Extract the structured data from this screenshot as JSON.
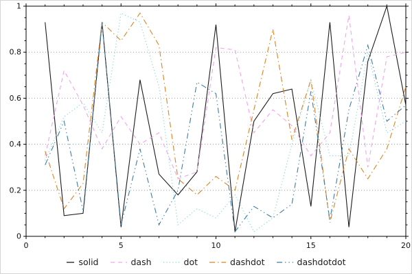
{
  "chart_data": {
    "type": "line",
    "title": "",
    "xlabel": "",
    "ylabel": "",
    "xlim": [
      0,
      20
    ],
    "ylim": [
      0,
      1
    ],
    "x_ticks": [
      0,
      5,
      10,
      15,
      20
    ],
    "x_tick_labels": [
      "0",
      "5",
      "10",
      "15",
      "20"
    ],
    "x_minor_step": 1,
    "y_ticks": [
      0,
      0.2,
      0.4,
      0.6,
      0.8,
      1
    ],
    "y_tick_labels": [
      "0",
      "0.2",
      "0.4",
      "0.6",
      "0.8",
      "1"
    ],
    "y_minor_step": 0.05,
    "grid": "horizontal-dotted",
    "grid_color": "#999999",
    "frame_color": "#000000",
    "legend_position": "bottom",
    "x": [
      1,
      2,
      3,
      4,
      5,
      6,
      7,
      8,
      9,
      10,
      11,
      12,
      13,
      14,
      15,
      16,
      17,
      18,
      19,
      20
    ],
    "series": [
      {
        "name": "solid",
        "color": "#1a1a1a",
        "dash": [],
        "values": [
          0.93,
          0.09,
          0.1,
          0.93,
          0.04,
          0.68,
          0.27,
          0.18,
          0.28,
          0.92,
          0.02,
          0.5,
          0.62,
          0.64,
          0.13,
          0.93,
          0.04,
          0.76,
          1.0,
          0.57
        ]
      },
      {
        "name": "dash",
        "color": "#f0a3ef",
        "dash": [
          6,
          5
        ],
        "values": [
          0.35,
          0.72,
          0.57,
          0.38,
          0.52,
          0.4,
          0.45,
          0.25,
          0.28,
          0.82,
          0.81,
          0.45,
          0.55,
          0.48,
          0.35,
          0.45,
          0.96,
          0.3,
          0.78,
          0.8
        ]
      },
      {
        "name": "dot",
        "color": "#7fd4e0",
        "dash": [
          1.2,
          3.2
        ],
        "values": [
          0.33,
          0.52,
          0.58,
          0.45,
          0.97,
          0.93,
          0.65,
          0.05,
          0.12,
          0.08,
          0.18,
          0.02,
          0.08,
          0.4,
          0.68,
          0.35,
          0.35,
          0.8,
          0.45,
          0.5
        ]
      },
      {
        "name": "dashdot",
        "color": "#e0821e",
        "dash": [
          8,
          4,
          1.4,
          4
        ],
        "values": [
          0.37,
          0.12,
          0.23,
          0.93,
          0.85,
          0.97,
          0.83,
          0.25,
          0.18,
          0.26,
          0.2,
          0.55,
          0.9,
          0.42,
          0.68,
          0.06,
          0.38,
          0.25,
          0.38,
          0.65
        ]
      },
      {
        "name": "dashdotdot",
        "color": "#3a7ca8",
        "dash": [
          8,
          4,
          1.4,
          4,
          1.4,
          4
        ],
        "values": [
          0.31,
          0.5,
          0.11,
          0.93,
          0.05,
          0.38,
          0.05,
          0.2,
          0.67,
          0.62,
          0.02,
          0.13,
          0.08,
          0.14,
          0.63,
          0.07,
          0.55,
          0.83,
          0.5,
          0.57
        ]
      }
    ]
  }
}
